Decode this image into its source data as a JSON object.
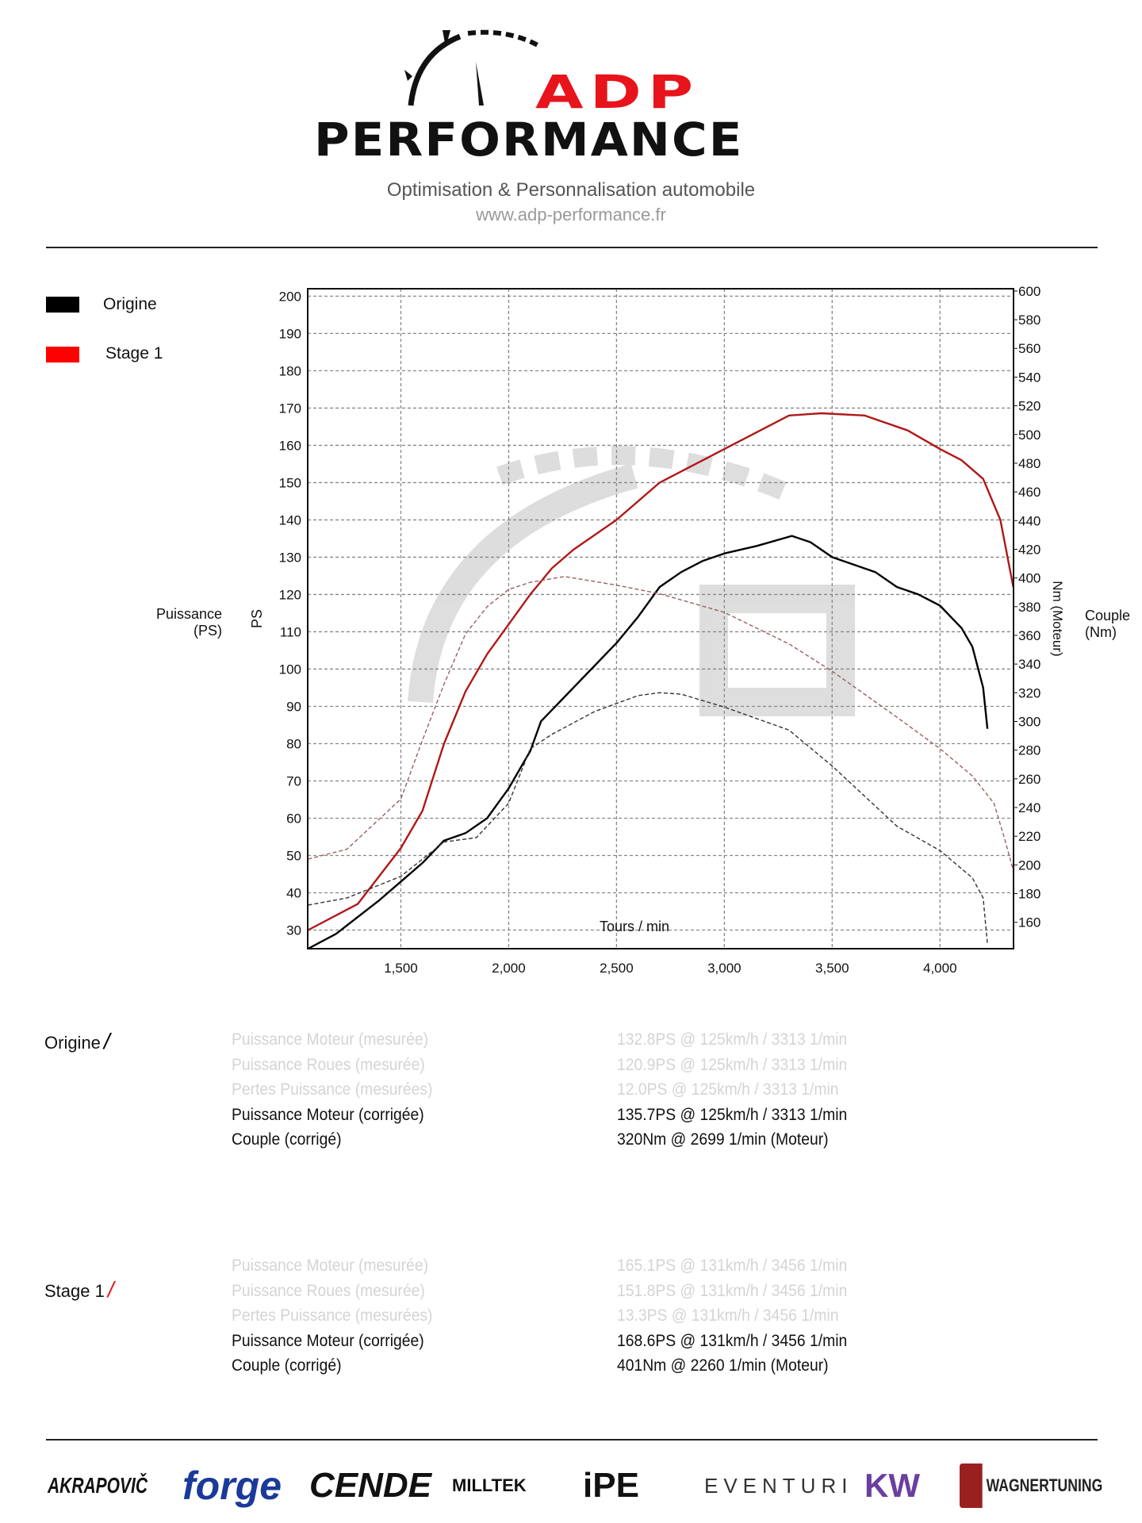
{
  "header": {
    "brand_top": "ADP",
    "brand_bottom": "PERFORMANCE",
    "tagline": "Optimisation & Personnalisation automobile",
    "website": "www.adp-performance.fr"
  },
  "legend": [
    {
      "label": "Origine",
      "color": "#000000"
    },
    {
      "label": "Stage 1",
      "color": "#ff0000"
    }
  ],
  "side_labels": {
    "left": "Puissance",
    "left_unit": "(PS)",
    "right": "Couple",
    "right_unit": "(Nm)"
  },
  "chart_data": {
    "type": "line",
    "xlabel": "Tours / min",
    "ylabel": "PS",
    "y2label": "Nm (Moteur)",
    "xlim": [
      1068,
      4341
    ],
    "ylim": [
      25,
      202
    ],
    "y2lim": [
      141.6,
      601.6
    ],
    "xticks": [
      "1,500",
      "2,000",
      "2,500",
      "3,000",
      "3,500",
      "4,000"
    ],
    "xtick_values": [
      1500,
      2000,
      2500,
      3000,
      3500,
      4000
    ],
    "yticks": [
      30,
      40,
      50,
      60,
      70,
      80,
      90,
      100,
      110,
      120,
      130,
      140,
      150,
      160,
      170,
      180,
      190,
      200
    ],
    "y2ticks": [
      160,
      180,
      200,
      220,
      240,
      260,
      280,
      300,
      320,
      340,
      360,
      380,
      400,
      420,
      440,
      460,
      480,
      500,
      520,
      540,
      560,
      580,
      600
    ],
    "grid": true,
    "series": [
      {
        "name": "Stage 1",
        "kind": "power",
        "axis": "left",
        "color": "#b01818",
        "style": "solid",
        "x": [
          1070,
          1300,
          1500,
          1600,
          1700,
          1800,
          1900,
          2000,
          2100,
          2200,
          2300,
          2500,
          2700,
          2900,
          3000,
          3200,
          3300,
          3450,
          3650,
          3850,
          4000,
          4100,
          4200,
          4280,
          4340
        ],
        "y": [
          30,
          37,
          52,
          62,
          80,
          94,
          104,
          112,
          120,
          127,
          132,
          140,
          150,
          156,
          159,
          165,
          168,
          168.6,
          168,
          164,
          159,
          156,
          151,
          140,
          122
        ]
      },
      {
        "name": "Origine",
        "kind": "power",
        "axis": "left",
        "color": "#000000",
        "style": "solid",
        "x": [
          1070,
          1200,
          1400,
          1600,
          1700,
          1800,
          1900,
          2000,
          2100,
          2150,
          2300,
          2500,
          2600,
          2700,
          2800,
          2900,
          3000,
          3150,
          3313,
          3400,
          3500,
          3700,
          3800,
          3900,
          4000,
          4100,
          4150,
          4200,
          4220
        ],
        "y": [
          25,
          29,
          38,
          48,
          54,
          56,
          60,
          68,
          78,
          86,
          95,
          107,
          114,
          122,
          126,
          129,
          131,
          133,
          135.7,
          134,
          130,
          126,
          122,
          120,
          117,
          111,
          106,
          95,
          84
        ]
      },
      {
        "name": "Stage 1",
        "kind": "torque",
        "axis": "right",
        "color": "#9a6060",
        "style": "dashed",
        "x": [
          1070,
          1250,
          1500,
          1600,
          1700,
          1800,
          1900,
          2000,
          2100,
          2260,
          2500,
          2700,
          3000,
          3300,
          3500,
          3800,
          4000,
          4150,
          4250,
          4300,
          4340
        ],
        "y": [
          204,
          211,
          246,
          287,
          326,
          361,
          380,
          392,
          397,
          401,
          395,
          389,
          376,
          354,
          335,
          303,
          281,
          262,
          243,
          218,
          196
        ]
      },
      {
        "name": "Origine",
        "kind": "torque",
        "axis": "right",
        "color": "#333333",
        "style": "dashed",
        "x": [
          1070,
          1250,
          1500,
          1700,
          1850,
          2000,
          2100,
          2200,
          2400,
          2600,
          2699,
          2800,
          3000,
          3300,
          3500,
          3800,
          4000,
          4150,
          4200,
          4220
        ],
        "y": [
          172,
          177,
          192,
          216,
          219,
          243,
          281,
          291,
          307,
          318,
          320,
          319,
          310,
          294,
          269,
          227,
          210,
          191,
          177,
          145
        ]
      }
    ]
  },
  "results": [
    {
      "label": "Origine",
      "slash_color": "#000000",
      "rows": [
        {
          "name": "Puissance Moteur (mesurée)",
          "value": "132.8PS @ 125km/h / 3313 1/min",
          "faint": true
        },
        {
          "name": "Puissance Roues (mesurée)",
          "value": "120.9PS @ 125km/h / 3313 1/min",
          "faint": true
        },
        {
          "name": "Pertes Puissance (mesurées)",
          "value": "12.0PS @ 125km/h / 3313 1/min",
          "faint": true
        },
        {
          "name": "Puissance Moteur (corrigée)",
          "value": "135.7PS @ 125km/h / 3313 1/min",
          "faint": false
        },
        {
          "name": "Couple (corrigé)",
          "value": "320Nm @ 2699 1/min (Moteur)",
          "faint": false
        }
      ]
    },
    {
      "label": "Stage 1",
      "slash_color": "#e8141b",
      "rows": [
        {
          "name": "Puissance Moteur (mesurée)",
          "value": "165.1PS @ 131km/h / 3456 1/min",
          "faint": true
        },
        {
          "name": "Puissance Roues (mesurée)",
          "value": "151.8PS @ 131km/h / 3456 1/min",
          "faint": true
        },
        {
          "name": "Pertes Puissance (mesurées)",
          "value": "13.3PS @ 131km/h / 3456 1/min",
          "faint": true
        },
        {
          "name": "Puissance Moteur (corrigée)",
          "value": "168.6PS @ 131km/h / 3456 1/min",
          "faint": false
        },
        {
          "name": "Couple (corrigé)",
          "value": "401Nm @ 2260 1/min (Moteur)",
          "faint": false
        }
      ]
    }
  ],
  "sponsors": [
    "AKRAPOVIČ",
    "forge",
    "CENDE",
    "MILLTEK",
    "iPE",
    "EVENTURI",
    "KW",
    "WAGNERTUNING"
  ]
}
